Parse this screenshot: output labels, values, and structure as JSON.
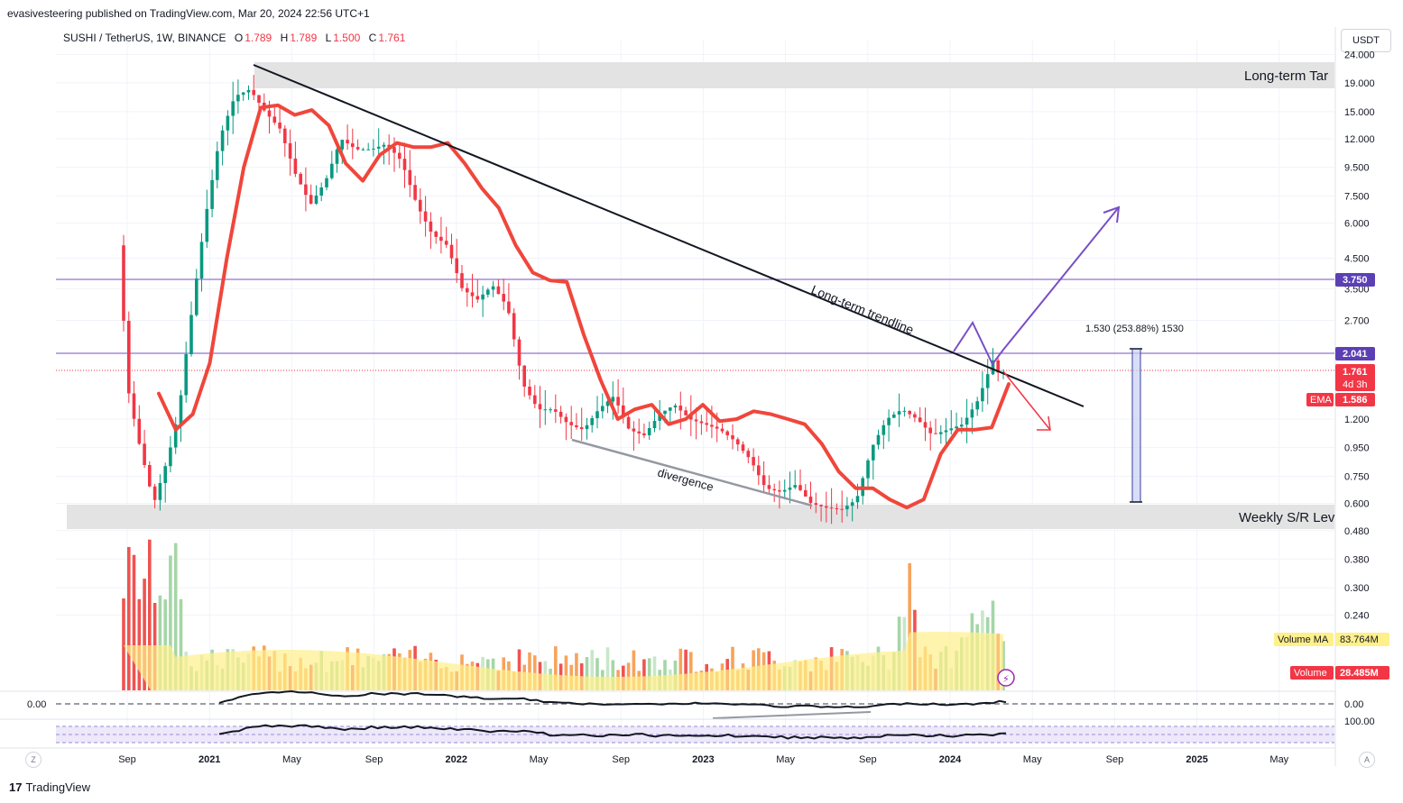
{
  "publisher": "evasivesteering published on TradingView.com, Mar 20, 2024 22:56 UTC+1",
  "legend": {
    "symbol": "SUSHI / TetherUS, 1W, BINANCE",
    "o_key": "O",
    "o": "1.789",
    "h_key": "H",
    "h": "1.789",
    "l_key": "L",
    "l": "1.500",
    "c_key": "C",
    "c": "1.761"
  },
  "currency": "USDT",
  "footer": {
    "logo_mark": "17",
    "logo_text": "TradingView",
    "left_btn": "Z",
    "right_btn": "A"
  },
  "colors": {
    "ema": "#f0463b",
    "purple_line": "#7a4fc4",
    "up_candle": "#089981",
    "down_candle": "#f23645",
    "zone": "#e0e0e0",
    "vol_ma": "#fff08a",
    "price_tag": "#f23645",
    "level_tag": "#5b3fb5"
  },
  "chart_data": {
    "type": "candlestick",
    "y_scale": "log",
    "y_ticks": [
      "24.000",
      "19.000",
      "15.000",
      "12.000",
      "9.500",
      "7.500",
      "6.000",
      "4.500",
      "3.500",
      "2.700",
      "1.200",
      "0.950",
      "0.750",
      "0.600",
      "0.480",
      "0.380",
      "0.300",
      "0.240"
    ],
    "x_ticks": [
      "Sep",
      "2021",
      "May",
      "Sep",
      "2022",
      "May",
      "Sep",
      "2023",
      "May",
      "Sep",
      "2024",
      "May",
      "Sep",
      "2025",
      "May"
    ],
    "price_tags": {
      "level_upper": "3.750",
      "level_lower": "2.041",
      "last_price": "1.761",
      "countdown": "4d 3h",
      "ema_label": "EMA",
      "ema_value": "1.586"
    },
    "volume_tags": {
      "ma_label": "Volume MA",
      "ma_value": "83.764M",
      "vol_label": "Volume",
      "vol_value": "28.485M"
    },
    "indicator_ticks": {
      "osc_zero_left": "0.00",
      "osc_zero_right": "0.00",
      "rsi_top": "100.00"
    },
    "annotations": {
      "zone_top": "Long-term Tar",
      "zone_bottom": "Weekly S/R Lev",
      "trendline": "Long-term trendline",
      "divergence": "divergence",
      "measure": "1.530 (253.88%) 1530"
    },
    "ema_path": [
      [
        0.0,
        1.48
      ],
      [
        0.02,
        1.1
      ],
      [
        0.04,
        1.25
      ],
      [
        0.06,
        1.9
      ],
      [
        0.08,
        4.5
      ],
      [
        0.1,
        9.5
      ],
      [
        0.12,
        15.5
      ],
      [
        0.14,
        15.8
      ],
      [
        0.16,
        14.6
      ],
      [
        0.18,
        15.2
      ],
      [
        0.2,
        13.4
      ],
      [
        0.22,
        9.8
      ],
      [
        0.24,
        8.5
      ],
      [
        0.26,
        10.5
      ],
      [
        0.28,
        11.6
      ],
      [
        0.3,
        11.2
      ],
      [
        0.32,
        11.2
      ],
      [
        0.34,
        11.6
      ],
      [
        0.36,
        9.8
      ],
      [
        0.38,
        8.0
      ],
      [
        0.4,
        6.8
      ],
      [
        0.42,
        5.0
      ],
      [
        0.44,
        4.0
      ],
      [
        0.46,
        3.75
      ],
      [
        0.48,
        3.7
      ],
      [
        0.5,
        2.4
      ],
      [
        0.52,
        1.65
      ],
      [
        0.54,
        1.2
      ],
      [
        0.56,
        1.3
      ],
      [
        0.58,
        1.35
      ],
      [
        0.6,
        1.15
      ],
      [
        0.62,
        1.2
      ],
      [
        0.64,
        1.35
      ],
      [
        0.66,
        1.18
      ],
      [
        0.68,
        1.2
      ],
      [
        0.7,
        1.28
      ],
      [
        0.72,
        1.25
      ],
      [
        0.74,
        1.2
      ],
      [
        0.76,
        1.15
      ],
      [
        0.78,
        0.98
      ],
      [
        0.8,
        0.78
      ],
      [
        0.82,
        0.68
      ],
      [
        0.84,
        0.68
      ],
      [
        0.86,
        0.62
      ],
      [
        0.88,
        0.58
      ],
      [
        0.9,
        0.62
      ],
      [
        0.92,
        0.9
      ],
      [
        0.94,
        1.1
      ],
      [
        0.96,
        1.1
      ],
      [
        0.98,
        1.12
      ],
      [
        1.0,
        1.6
      ]
    ]
  }
}
